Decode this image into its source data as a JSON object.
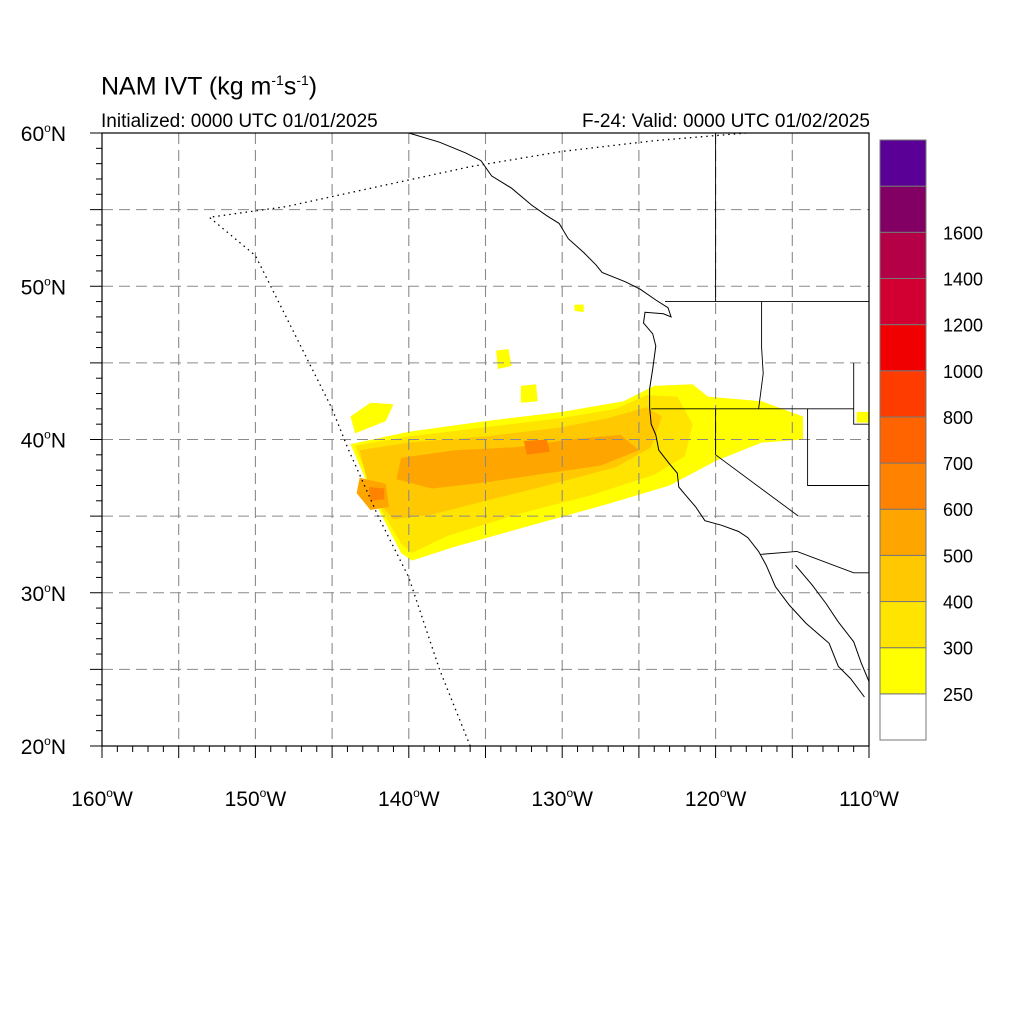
{
  "title": {
    "prefix": "NAM IVT (kg m",
    "exp1": "-1",
    "mid": "s",
    "exp2": "-1",
    "suffix": ")"
  },
  "subtitle_left": "Initialized: 0000 UTC 01/01/2025",
  "subtitle_right": "F-24: Valid: 0000 UTC 01/02/2025",
  "axes": {
    "lat_labels": [
      {
        "lat": 60,
        "num": "60",
        "deg": "o",
        "hemi": "N"
      },
      {
        "lat": 50,
        "num": "50",
        "deg": "o",
        "hemi": "N"
      },
      {
        "lat": 40,
        "num": "40",
        "deg": "o",
        "hemi": "N"
      },
      {
        "lat": 30,
        "num": "30",
        "deg": "o",
        "hemi": "N"
      },
      {
        "lat": 20,
        "num": "20",
        "deg": "o",
        "hemi": "N"
      }
    ],
    "lon_labels": [
      {
        "lon": -160,
        "num": "160",
        "deg": "o",
        "hemi": "W"
      },
      {
        "lon": -150,
        "num": "150",
        "deg": "o",
        "hemi": "W"
      },
      {
        "lon": -140,
        "num": "140",
        "deg": "o",
        "hemi": "W"
      },
      {
        "lon": -130,
        "num": "130",
        "deg": "o",
        "hemi": "W"
      },
      {
        "lon": -120,
        "num": "120",
        "deg": "o",
        "hemi": "W"
      },
      {
        "lon": -110,
        "num": "110",
        "deg": "o",
        "hemi": "W"
      }
    ],
    "lon_range": [
      -160,
      -110
    ],
    "lat_range": [
      20,
      60
    ],
    "grid_lons": [
      -155,
      -150,
      -145,
      -140,
      -135,
      -130,
      -125,
      -120,
      -115
    ],
    "grid_lats": [
      25,
      30,
      35,
      40,
      45,
      50,
      55
    ]
  },
  "colorbar": {
    "bins": [
      {
        "color": "#ffffff",
        "label": ""
      },
      {
        "color": "#ffff00",
        "label": "250"
      },
      {
        "color": "#ffe400",
        "label": "300"
      },
      {
        "color": "#ffc800",
        "label": "400"
      },
      {
        "color": "#ffa500",
        "label": "500"
      },
      {
        "color": "#ff8200",
        "label": "600"
      },
      {
        "color": "#ff6400",
        "label": "700"
      },
      {
        "color": "#ff3c00",
        "label": "800"
      },
      {
        "color": "#f00000",
        "label": "1000"
      },
      {
        "color": "#d20032",
        "label": "1200"
      },
      {
        "color": "#b40046",
        "label": "1400"
      },
      {
        "color": "#820064",
        "label": "1600"
      },
      {
        "color": "#5a0096",
        "label": ""
      }
    ]
  },
  "ivt_regions": [
    {
      "level": "250",
      "color": "#ffff00",
      "polygon": [
        [
          -143.8,
          39.7
        ],
        [
          -140,
          40.5
        ],
        [
          -135,
          41.2
        ],
        [
          -130,
          41.8
        ],
        [
          -126,
          42.5
        ],
        [
          -124,
          43.5
        ],
        [
          -121.5,
          43.6
        ],
        [
          -120.5,
          42.8
        ],
        [
          -117,
          42.5
        ],
        [
          -114.3,
          41.5
        ],
        [
          -114.3,
          40.0
        ],
        [
          -117,
          39.8
        ],
        [
          -120,
          38.6
        ],
        [
          -123,
          37.0
        ],
        [
          -127,
          35.8
        ],
        [
          -132,
          34.4
        ],
        [
          -137,
          33.0
        ],
        [
          -139.8,
          32.1
        ],
        [
          -140.5,
          32.6
        ],
        [
          -142,
          35.5
        ]
      ]
    },
    {
      "level": "250",
      "color": "#ffff00",
      "polygon": [
        [
          -143.5,
          40.4
        ],
        [
          -141.5,
          41.2
        ],
        [
          -141,
          42.3
        ],
        [
          -142.5,
          42.4
        ],
        [
          -143.8,
          41.5
        ]
      ]
    },
    {
      "level": "250",
      "color": "#ffff00",
      "polygon": [
        [
          -134.3,
          45.8
        ],
        [
          -133.5,
          45.9
        ],
        [
          -133.3,
          44.8
        ],
        [
          -134.2,
          44.6
        ]
      ]
    },
    {
      "level": "250",
      "color": "#ffff00",
      "polygon": [
        [
          -132.7,
          43.5
        ],
        [
          -131.7,
          43.6
        ],
        [
          -131.6,
          42.5
        ],
        [
          -132.7,
          42.4
        ]
      ]
    },
    {
      "level": "250",
      "color": "#ffff00",
      "polygon": [
        [
          -129.2,
          48.8
        ],
        [
          -128.6,
          48.8
        ],
        [
          -128.6,
          48.3
        ],
        [
          -129.2,
          48.4
        ]
      ]
    },
    {
      "level": "250",
      "color": "#ffff00",
      "polygon": [
        [
          -110.8,
          41.8
        ],
        [
          -110,
          41.8
        ],
        [
          -110,
          41.1
        ],
        [
          -110.8,
          41.1
        ]
      ]
    },
    {
      "level": "300",
      "color": "#ffe400",
      "polygon": [
        [
          -143.5,
          39.6
        ],
        [
          -140,
          40.2
        ],
        [
          -135,
          40.8
        ],
        [
          -130,
          41.4
        ],
        [
          -126.5,
          42.0
        ],
        [
          -124.5,
          42.9
        ],
        [
          -122.5,
          42.8
        ],
        [
          -121.5,
          41.0
        ],
        [
          -122.0,
          38.9
        ],
        [
          -124,
          37.7
        ],
        [
          -128,
          36.4
        ],
        [
          -133,
          35.1
        ],
        [
          -137.5,
          33.7
        ],
        [
          -139.8,
          32.6
        ],
        [
          -140.5,
          33.2
        ],
        [
          -142,
          35.8
        ]
      ]
    },
    {
      "level": "400",
      "color": "#ffc800",
      "polygon": [
        [
          -143.2,
          39.3
        ],
        [
          -140,
          39.8
        ],
        [
          -135,
          40.2
        ],
        [
          -130,
          40.8
        ],
        [
          -127,
          41.4
        ],
        [
          -124.5,
          42.1
        ],
        [
          -123.5,
          41.5
        ],
        [
          -124.2,
          39.5
        ],
        [
          -126.5,
          38.2
        ],
        [
          -131,
          37.0
        ],
        [
          -135,
          36.0
        ],
        [
          -138.5,
          35.1
        ],
        [
          -141,
          34.8
        ],
        [
          -142.5,
          36.5
        ]
      ]
    },
    {
      "level": "500",
      "color": "#ffa500",
      "polygon": [
        [
          -140.5,
          38.8
        ],
        [
          -137,
          39.3
        ],
        [
          -133,
          39.5
        ],
        [
          -129.5,
          40.0
        ],
        [
          -126.2,
          40.3
        ],
        [
          -125,
          39.3
        ],
        [
          -127.5,
          38.3
        ],
        [
          -131,
          37.8
        ],
        [
          -135,
          37.2
        ],
        [
          -138.5,
          36.8
        ],
        [
          -140.8,
          37.4
        ]
      ]
    },
    {
      "level": "500",
      "color": "#ffa500",
      "polygon": [
        [
          -143.2,
          37.5
        ],
        [
          -141.5,
          37.1
        ],
        [
          -141.3,
          35.6
        ],
        [
          -142.5,
          35.4
        ],
        [
          -143.4,
          36.5
        ]
      ]
    },
    {
      "level": "600",
      "color": "#ff8200",
      "polygon": [
        [
          -132.5,
          39.9
        ],
        [
          -131.0,
          40.0
        ],
        [
          -130.8,
          39.2
        ],
        [
          -132.3,
          39.0
        ]
      ]
    },
    {
      "level": "600",
      "color": "#ff8200",
      "polygon": [
        [
          -142.6,
          36.9
        ],
        [
          -141.6,
          36.8
        ],
        [
          -141.6,
          36.1
        ],
        [
          -142.5,
          36.0
        ]
      ]
    }
  ],
  "boundaries": {
    "coast": [
      [
        -140,
        60
      ],
      [
        -138,
        59.4
      ],
      [
        -136.3,
        58.7
      ],
      [
        -135.3,
        58.2
      ],
      [
        -134.6,
        57.2
      ],
      [
        -133.3,
        56.4
      ],
      [
        -132,
        55.3
      ],
      [
        -131,
        54.6
      ],
      [
        -130.2,
        54.1
      ],
      [
        -129.6,
        53.1
      ],
      [
        -128.6,
        52.2
      ],
      [
        -127.8,
        51.4
      ],
      [
        -127.4,
        50.9
      ],
      [
        -125.9,
        50.3
      ],
      [
        -124.9,
        49.8
      ],
      [
        -123.9,
        49.1
      ],
      [
        -123.1,
        48.6
      ],
      [
        -122.9,
        48.0
      ],
      [
        -123.4,
        48.2
      ],
      [
        -124.6,
        48.3
      ],
      [
        -124.7,
        47.6
      ],
      [
        -124.1,
        46.9
      ],
      [
        -123.9,
        46.1
      ],
      [
        -124.1,
        44.6
      ],
      [
        -124.3,
        43.3
      ],
      [
        -124.3,
        42.1
      ],
      [
        -124.2,
        41.0
      ],
      [
        -123.9,
        40.3
      ],
      [
        -123.7,
        39.3
      ],
      [
        -123.0,
        38.4
      ],
      [
        -122.5,
        37.8
      ],
      [
        -122.4,
        36.9
      ],
      [
        -121.9,
        36.3
      ],
      [
        -121.3,
        35.6
      ],
      [
        -120.7,
        34.7
      ],
      [
        -119.6,
        34.4
      ],
      [
        -118.5,
        34.0
      ],
      [
        -117.9,
        33.6
      ],
      [
        -117.2,
        32.7
      ],
      [
        -116.7,
        31.8
      ],
      [
        -116.1,
        30.4
      ],
      [
        -115.2,
        29.2
      ],
      [
        -114.1,
        28.0
      ],
      [
        -112.6,
        26.7
      ],
      [
        -112.0,
        25.2
      ],
      [
        -111.2,
        24.4
      ],
      [
        -110.3,
        23.2
      ]
    ],
    "gulf": [
      [
        -114.8,
        31.8
      ],
      [
        -113.7,
        30.5
      ],
      [
        -112.8,
        29.3
      ],
      [
        -112.0,
        28.1
      ],
      [
        -111.0,
        26.8
      ],
      [
        -110.5,
        25.4
      ],
      [
        -110,
        24.2
      ]
    ],
    "borders": [
      [
        [
          -141,
          60
        ],
        [
          -141,
          60
        ]
      ],
      [
        [
          -123.3,
          49
        ],
        [
          -110,
          49
        ]
      ],
      [
        [
          -117,
          49
        ],
        [
          -117,
          46
        ],
        [
          -116.9,
          44.3
        ],
        [
          -117.2,
          42
        ]
      ],
      [
        [
          -124.2,
          42
        ],
        [
          -111,
          42
        ]
      ],
      [
        [
          -120,
          42
        ],
        [
          -120,
          39
        ],
        [
          -114.6,
          35
        ]
      ],
      [
        [
          -114,
          42
        ],
        [
          -114,
          37
        ],
        [
          -110,
          37
        ]
      ],
      [
        [
          -111,
          45
        ],
        [
          -111,
          41
        ],
        [
          -110,
          41
        ]
      ],
      [
        [
          -117.1,
          32.5
        ],
        [
          -114.7,
          32.7
        ],
        [
          -111,
          31.3
        ],
        [
          -108,
          31.3
        ]
      ],
      [
        [
          -120,
          60
        ],
        [
          -120,
          49
        ]
      ]
    ],
    "eez": [
      [
        -136,
        20
      ],
      [
        -138,
        25
      ],
      [
        -140,
        31
      ],
      [
        -142,
        35
      ],
      [
        -144,
        39.5
      ],
      [
        -145,
        42
      ],
      [
        -146.5,
        45
      ],
      [
        -148,
        48
      ],
      [
        -150,
        52
      ],
      [
        -153,
        54.5
      ],
      [
        -148,
        55.2
      ],
      [
        -142,
        56.5
      ],
      [
        -136,
        57.8
      ],
      [
        -130,
        58.8
      ],
      [
        -124,
        59.5
      ],
      [
        -118,
        60
      ]
    ]
  }
}
